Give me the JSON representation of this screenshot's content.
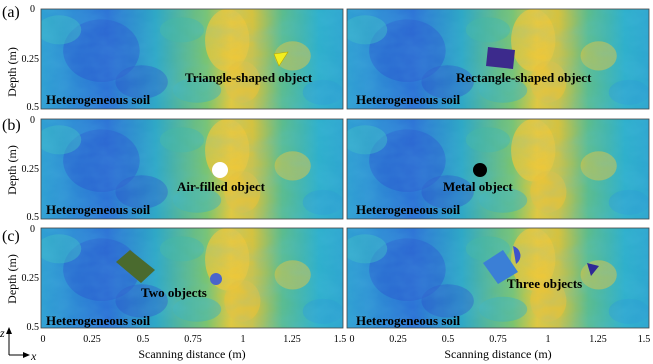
{
  "rows": [
    {
      "label": "(a)",
      "panels": [
        {
          "caption": "Triangle-shaped object",
          "soil": "Heterogeneous soil"
        },
        {
          "caption": "Rectangle-shaped object",
          "soil": "Heterogeneous soil"
        }
      ]
    },
    {
      "label": "(b)",
      "panels": [
        {
          "caption": "Air-filled object",
          "soil": "Heterogeneous soil"
        },
        {
          "caption": "Metal object",
          "soil": "Heterogeneous soil"
        }
      ]
    },
    {
      "label": "(c)",
      "panels": [
        {
          "caption": "Two objects",
          "soil": "Heterogeneous soil"
        },
        {
          "caption": "Three objects",
          "soil": "Heterogeneous soil"
        }
      ]
    }
  ],
  "axes": {
    "ylabel": "Depth (m)",
    "xlabel": "Scanning distance (m)",
    "yticks": [
      "0",
      "0.25",
      "0.5"
    ],
    "xticks": [
      "0",
      "0.25",
      "0.5",
      "0.75",
      "1",
      "1.25",
      "1.5"
    ],
    "coord_z": "z",
    "coord_x": "x"
  },
  "colors": {
    "triangle": "#f2ee20",
    "rectangle": "#3c2a8c",
    "air": "#ffffff",
    "metal": "#000000",
    "two_rect": "#4a6a2e",
    "two_circle": "#4a64cc",
    "three_rect": "#3b7fd6",
    "three_semi": "#3d52cc",
    "three_tri": "#2f2896"
  }
}
